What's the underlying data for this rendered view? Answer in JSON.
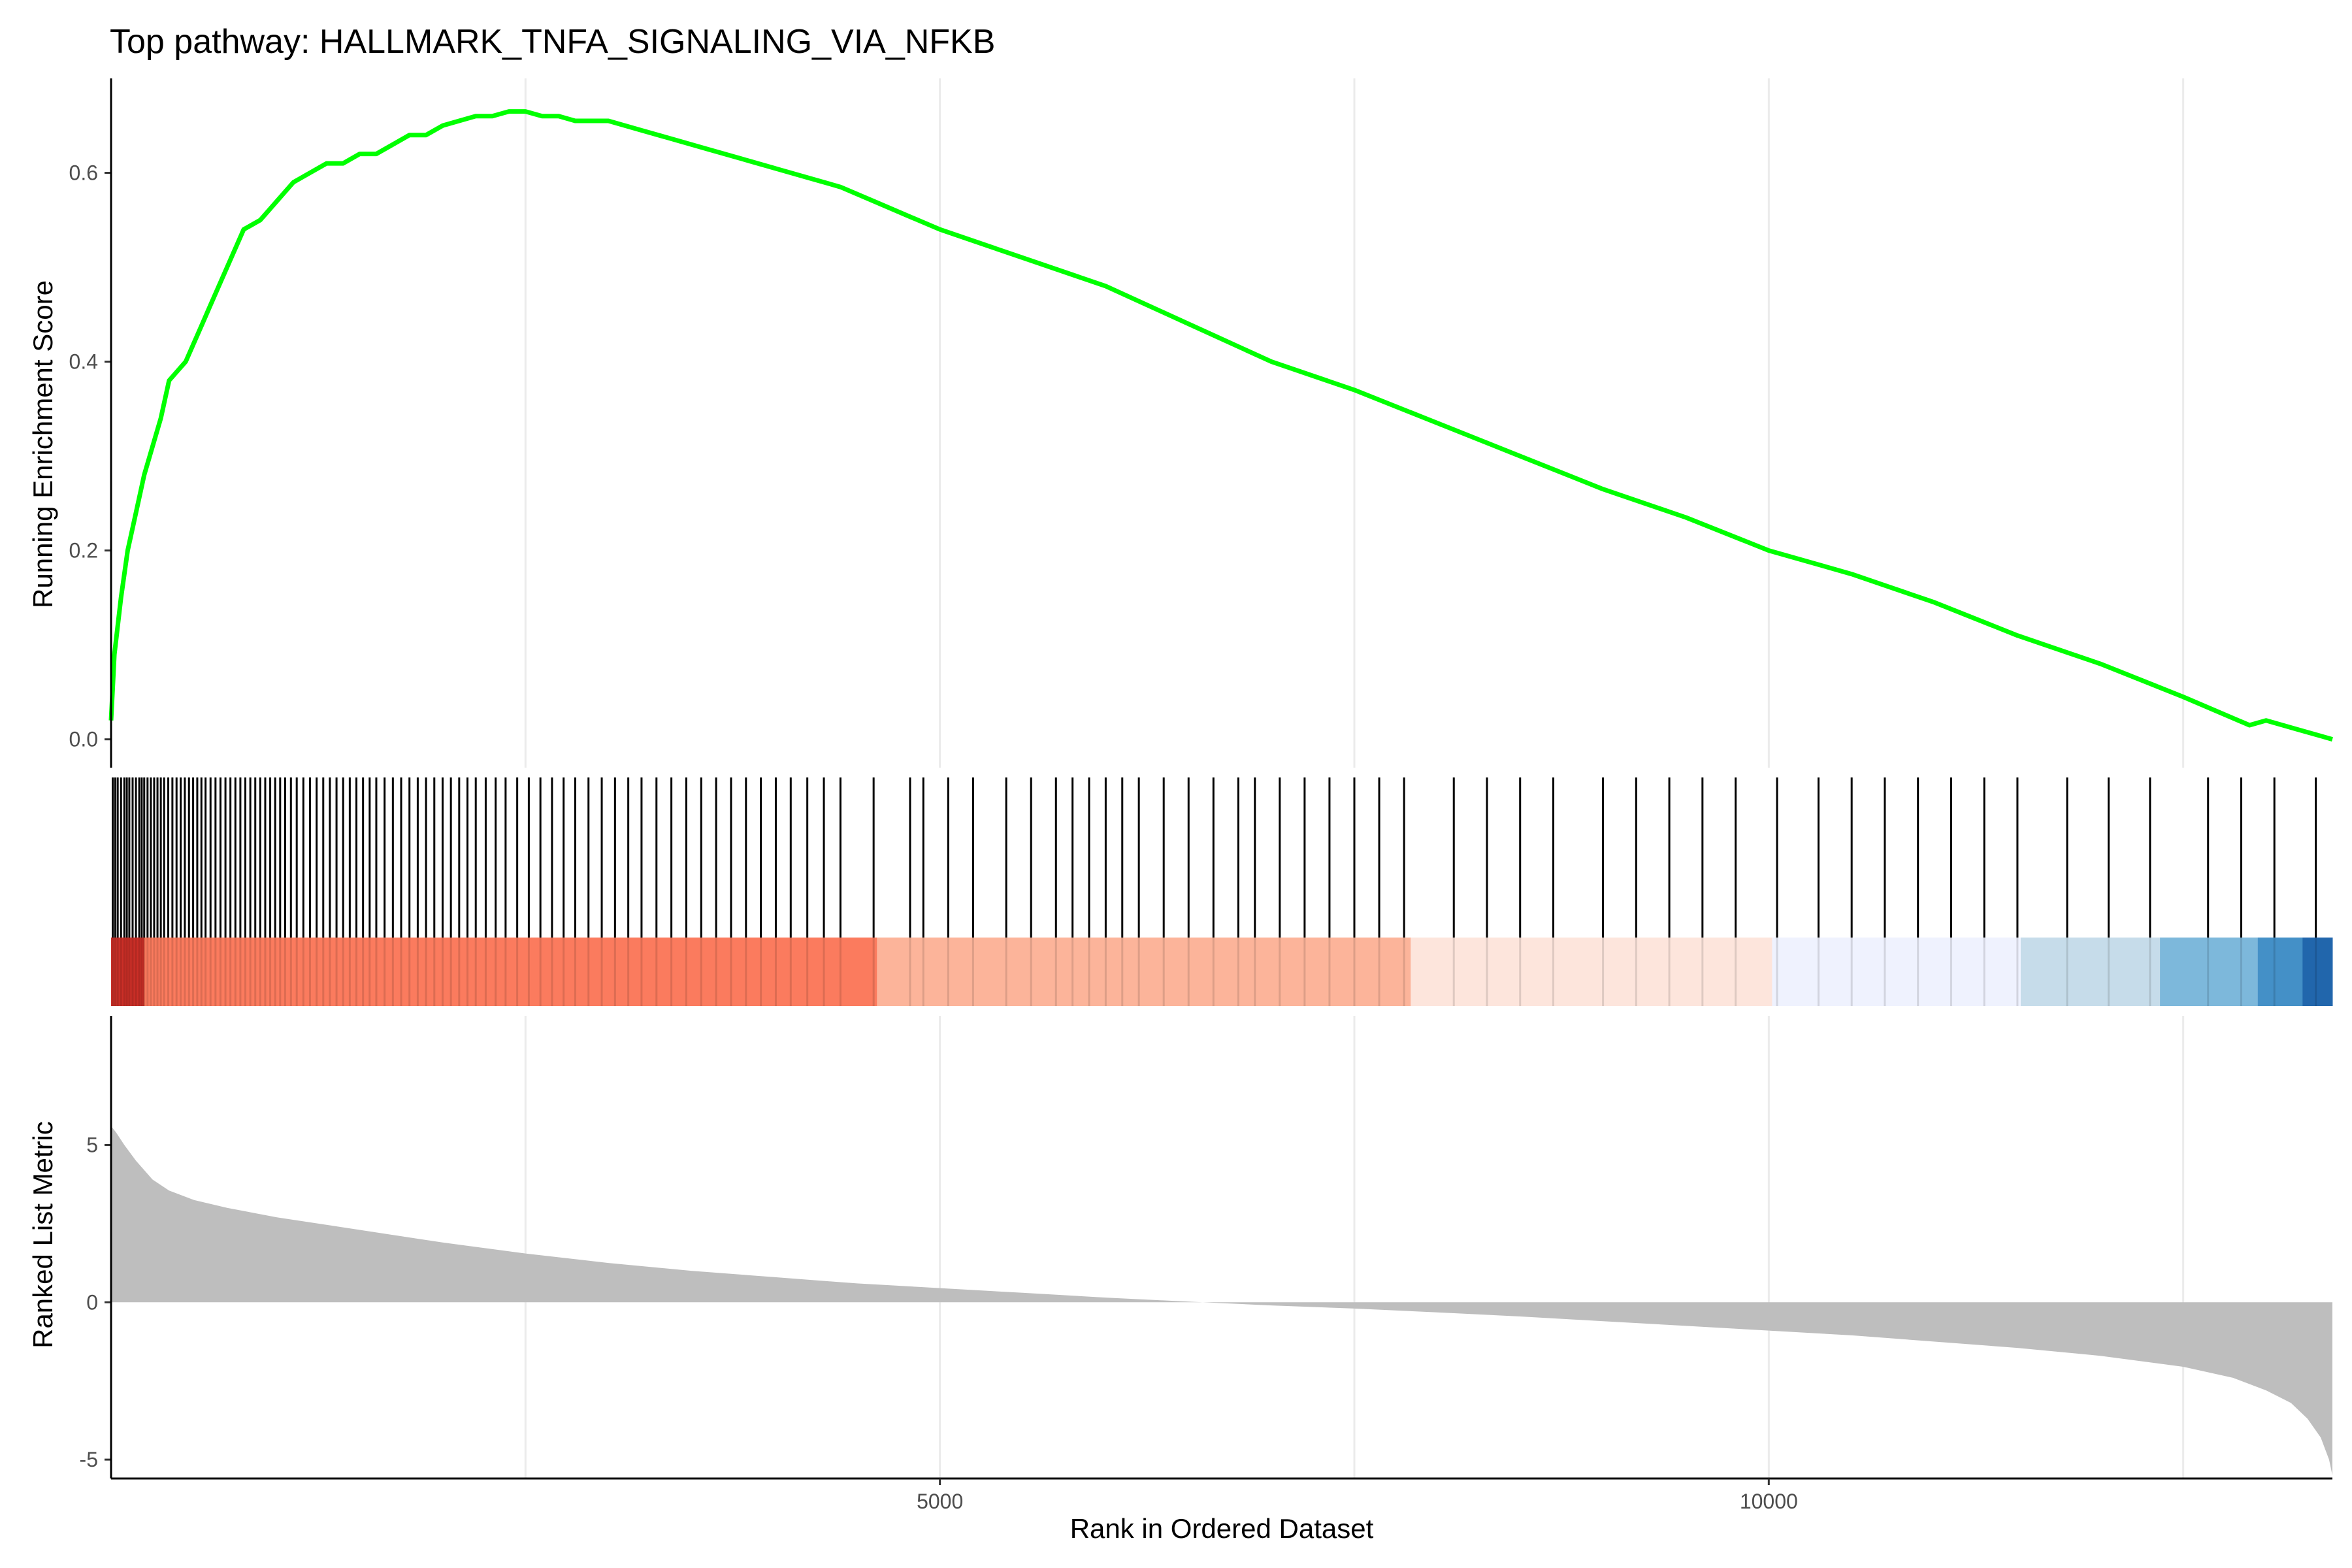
{
  "title": "Top pathway: HALLMARK_TNFA_SIGNALING_VIA_NFKB",
  "chart_data": {
    "type": "line",
    "n_genes": 13400,
    "xlabel": "Rank in Ordered Dataset",
    "x_ticks": [
      5000,
      10000
    ],
    "x_gridlines": [
      2500,
      5000,
      7500,
      10000,
      12500
    ],
    "colors": {
      "es_line": "#00ff00",
      "metric_fill": "#bebebe",
      "hit": "#000000",
      "grid": "#ebebeb"
    },
    "running_enrichment": {
      "ylabel": "Running Enrichment Score",
      "ylim": [
        -0.03,
        0.7
      ],
      "y_ticks": [
        0.0,
        0.2,
        0.4,
        0.6
      ],
      "points": [
        [
          0,
          0.02
        ],
        [
          20,
          0.09
        ],
        [
          60,
          0.15
        ],
        [
          100,
          0.2
        ],
        [
          150,
          0.24
        ],
        [
          200,
          0.28
        ],
        [
          250,
          0.31
        ],
        [
          300,
          0.34
        ],
        [
          350,
          0.38
        ],
        [
          400,
          0.39
        ],
        [
          450,
          0.4
        ],
        [
          500,
          0.42
        ],
        [
          550,
          0.44
        ],
        [
          600,
          0.46
        ],
        [
          650,
          0.48
        ],
        [
          700,
          0.5
        ],
        [
          750,
          0.52
        ],
        [
          800,
          0.54
        ],
        [
          900,
          0.55
        ],
        [
          1000,
          0.57
        ],
        [
          1100,
          0.59
        ],
        [
          1200,
          0.6
        ],
        [
          1300,
          0.61
        ],
        [
          1400,
          0.61
        ],
        [
          1500,
          0.62
        ],
        [
          1600,
          0.62
        ],
        [
          1700,
          0.63
        ],
        [
          1800,
          0.64
        ],
        [
          1900,
          0.64
        ],
        [
          2000,
          0.65
        ],
        [
          2100,
          0.655
        ],
        [
          2200,
          0.66
        ],
        [
          2300,
          0.66
        ],
        [
          2400,
          0.665
        ],
        [
          2500,
          0.665
        ],
        [
          2600,
          0.66
        ],
        [
          2700,
          0.66
        ],
        [
          2800,
          0.655
        ],
        [
          3000,
          0.655
        ],
        [
          3200,
          0.645
        ],
        [
          3400,
          0.635
        ],
        [
          3600,
          0.625
        ],
        [
          3800,
          0.615
        ],
        [
          4000,
          0.605
        ],
        [
          4200,
          0.595
        ],
        [
          4400,
          0.585
        ],
        [
          4600,
          0.57
        ],
        [
          4800,
          0.555
        ],
        [
          5000,
          0.54
        ],
        [
          5500,
          0.51
        ],
        [
          6000,
          0.48
        ],
        [
          6500,
          0.44
        ],
        [
          7000,
          0.4
        ],
        [
          7500,
          0.37
        ],
        [
          8000,
          0.335
        ],
        [
          8500,
          0.3
        ],
        [
          9000,
          0.265
        ],
        [
          9500,
          0.235
        ],
        [
          10000,
          0.2
        ],
        [
          10500,
          0.175
        ],
        [
          11000,
          0.145
        ],
        [
          11500,
          0.11
        ],
        [
          12000,
          0.08
        ],
        [
          12500,
          0.045
        ],
        [
          12900,
          0.015
        ],
        [
          13000,
          0.02
        ],
        [
          13100,
          0.015
        ],
        [
          13200,
          0.01
        ],
        [
          13400,
          0.0
        ]
      ]
    },
    "hits": [
      10,
      25,
      40,
      60,
      80,
      95,
      110,
      130,
      150,
      170,
      185,
      200,
      220,
      240,
      260,
      280,
      300,
      320,
      345,
      370,
      395,
      420,
      445,
      470,
      495,
      520,
      545,
      570,
      600,
      630,
      660,
      690,
      720,
      750,
      780,
      810,
      840,
      870,
      900,
      930,
      960,
      990,
      1020,
      1050,
      1085,
      1120,
      1160,
      1200,
      1240,
      1280,
      1320,
      1360,
      1400,
      1440,
      1480,
      1520,
      1560,
      1600,
      1650,
      1700,
      1750,
      1800,
      1850,
      1900,
      1950,
      2000,
      2050,
      2100,
      2150,
      2200,
      2260,
      2320,
      2380,
      2450,
      2520,
      2590,
      2660,
      2730,
      2800,
      2880,
      2960,
      3040,
      3120,
      3200,
      3290,
      3380,
      3470,
      3560,
      3650,
      3740,
      3830,
      3920,
      4010,
      4100,
      4200,
      4300,
      4400,
      4600,
      4820,
      4900,
      5050,
      5200,
      5400,
      5550,
      5700,
      5800,
      5900,
      6000,
      6100,
      6200,
      6350,
      6500,
      6650,
      6800,
      6900,
      7050,
      7200,
      7350,
      7500,
      7650,
      7800,
      8100,
      8300,
      8500,
      8700,
      9000,
      9200,
      9400,
      9600,
      9800,
      10050,
      10300,
      10500,
      10700,
      10900,
      11100,
      11300,
      11500,
      11800,
      12050,
      12300,
      12650,
      12850,
      13050,
      13300
    ],
    "heatmap_bands": [
      {
        "start": 0,
        "end": 200,
        "color": "#cb2f27"
      },
      {
        "start": 200,
        "end": 4620,
        "color": "#fb7b5e"
      },
      {
        "start": 4620,
        "end": 7840,
        "color": "#fcb49a"
      },
      {
        "start": 7840,
        "end": 10020,
        "color": "#fde5dc"
      },
      {
        "start": 10020,
        "end": 11520,
        "color": "#eff2fe"
      },
      {
        "start": 11520,
        "end": 12360,
        "color": "#c6dcea"
      },
      {
        "start": 12360,
        "end": 12950,
        "color": "#7db8db"
      },
      {
        "start": 12950,
        "end": 13220,
        "color": "#4490c7"
      },
      {
        "start": 13220,
        "end": 13400,
        "color": "#2166ac"
      }
    ],
    "ranked_metric": {
      "ylabel": "Ranked List Metric",
      "ylim": [
        -5.6,
        9.1
      ],
      "y_ticks": [
        -5,
        0,
        5
      ],
      "points": [
        [
          0,
          5.6
        ],
        [
          30,
          5.4
        ],
        [
          80,
          5.0
        ],
        [
          150,
          4.5
        ],
        [
          250,
          3.9
        ],
        [
          350,
          3.55
        ],
        [
          500,
          3.25
        ],
        [
          700,
          3.0
        ],
        [
          1000,
          2.7
        ],
        [
          1500,
          2.3
        ],
        [
          2000,
          1.9
        ],
        [
          2500,
          1.55
        ],
        [
          3000,
          1.25
        ],
        [
          3500,
          1.0
        ],
        [
          4000,
          0.8
        ],
        [
          4500,
          0.6
        ],
        [
          5000,
          0.45
        ],
        [
          5500,
          0.3
        ],
        [
          6000,
          0.15
        ],
        [
          6500,
          0.02
        ],
        [
          7000,
          -0.1
        ],
        [
          7500,
          -0.2
        ],
        [
          8000,
          -0.32
        ],
        [
          8500,
          -0.45
        ],
        [
          9000,
          -0.6
        ],
        [
          9500,
          -0.75
        ],
        [
          10000,
          -0.9
        ],
        [
          10500,
          -1.05
        ],
        [
          11000,
          -1.25
        ],
        [
          11500,
          -1.45
        ],
        [
          12000,
          -1.7
        ],
        [
          12500,
          -2.05
        ],
        [
          12800,
          -2.4
        ],
        [
          13000,
          -2.8
        ],
        [
          13150,
          -3.2
        ],
        [
          13250,
          -3.7
        ],
        [
          13330,
          -4.3
        ],
        [
          13380,
          -5.0
        ],
        [
          13400,
          -5.5
        ]
      ]
    }
  }
}
